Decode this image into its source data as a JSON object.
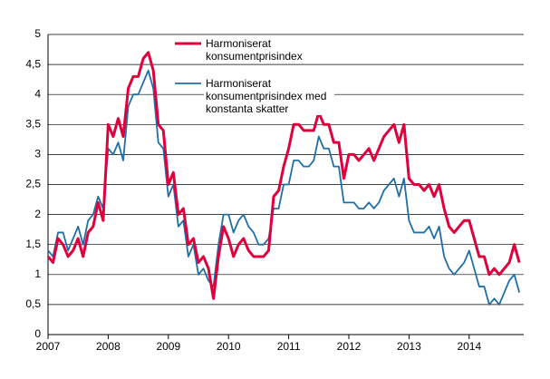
{
  "chart_data": {
    "type": "line",
    "categories": [
      "2007",
      null,
      null,
      null,
      null,
      null,
      null,
      null,
      null,
      null,
      null,
      null,
      "2008",
      null,
      null,
      null,
      null,
      null,
      null,
      null,
      null,
      null,
      null,
      null,
      "2009",
      null,
      null,
      null,
      null,
      null,
      null,
      null,
      null,
      null,
      null,
      null,
      "2010",
      null,
      null,
      null,
      null,
      null,
      null,
      null,
      null,
      null,
      null,
      null,
      "2011",
      null,
      null,
      null,
      null,
      null,
      null,
      null,
      null,
      null,
      null,
      null,
      "2012",
      null,
      null,
      null,
      null,
      null,
      null,
      null,
      null,
      null,
      null,
      null,
      "2013",
      null,
      null,
      null,
      null,
      null,
      null,
      null,
      null,
      null,
      null,
      null,
      "2014",
      null,
      null,
      null,
      null,
      null,
      null,
      null,
      null,
      null,
      null
    ],
    "series": [
      {
        "name": "Harmoniserat konsumentprisindex",
        "color": "#e0003c",
        "values": [
          1.3,
          1.2,
          1.6,
          1.5,
          1.3,
          1.4,
          1.6,
          1.3,
          1.7,
          1.8,
          2.2,
          1.9,
          3.5,
          3.3,
          3.6,
          3.3,
          4.1,
          4.3,
          4.3,
          4.6,
          4.7,
          4.4,
          3.5,
          3.4,
          2.5,
          2.7,
          2.0,
          2.1,
          1.5,
          1.6,
          1.2,
          1.3,
          1.1,
          0.6,
          1.3,
          1.8,
          1.6,
          1.3,
          1.5,
          1.6,
          1.4,
          1.3,
          1.3,
          1.3,
          1.4,
          2.3,
          2.4,
          2.8,
          3.1,
          3.5,
          3.5,
          3.4,
          3.4,
          3.4,
          3.7,
          3.5,
          3.5,
          3.2,
          3.2,
          2.6,
          3.0,
          3.0,
          2.9,
          3.0,
          3.1,
          2.9,
          3.1,
          3.3,
          3.4,
          3.5,
          3.2,
          3.5,
          2.6,
          2.5,
          2.5,
          2.4,
          2.5,
          2.3,
          2.5,
          2.1,
          1.8,
          1.7,
          1.8,
          1.9,
          1.9,
          1.6,
          1.3,
          1.3,
          1.0,
          1.1,
          1.0,
          1.1,
          1.2,
          1.5,
          1.2
        ]
      },
      {
        "name": "Harmoniserat konsumentprisindex med konstanta skatter",
        "color": "#1f6fa6",
        "values": [
          1.4,
          1.3,
          1.7,
          1.7,
          1.4,
          1.6,
          1.8,
          1.5,
          1.9,
          2.0,
          2.3,
          2.1,
          3.1,
          3.0,
          3.2,
          2.9,
          3.8,
          4.0,
          4.0,
          4.2,
          4.4,
          4.1,
          3.2,
          3.1,
          2.3,
          2.5,
          1.8,
          1.9,
          1.3,
          1.5,
          1.0,
          1.1,
          0.9,
          0.8,
          1.5,
          2.0,
          2.0,
          1.7,
          1.9,
          2.0,
          1.8,
          1.7,
          1.5,
          1.5,
          1.6,
          2.1,
          2.1,
          2.5,
          2.5,
          2.9,
          2.9,
          2.8,
          2.8,
          2.9,
          3.3,
          3.1,
          3.1,
          2.8,
          2.8,
          2.2,
          2.2,
          2.2,
          2.1,
          2.1,
          2.2,
          2.1,
          2.2,
          2.4,
          2.5,
          2.6,
          2.3,
          2.6,
          1.9,
          1.7,
          1.7,
          1.7,
          1.8,
          1.6,
          1.8,
          1.3,
          1.1,
          1.0,
          1.1,
          1.2,
          1.4,
          1.1,
          0.8,
          0.8,
          0.5,
          0.6,
          0.5,
          0.7,
          0.9,
          1.0,
          0.7
        ]
      }
    ],
    "ylim": [
      0,
      5
    ],
    "yticks": [
      0,
      {
        "value": 0.5,
        "label": "0,5"
      },
      1,
      {
        "value": 1.5,
        "label": "1,5"
      },
      2,
      {
        "value": 2.5,
        "label": "2,5"
      },
      3,
      {
        "value": 3.5,
        "label": "3,5"
      },
      4,
      {
        "value": 4.5,
        "label": "4,5"
      },
      5
    ],
    "grid": true
  }
}
